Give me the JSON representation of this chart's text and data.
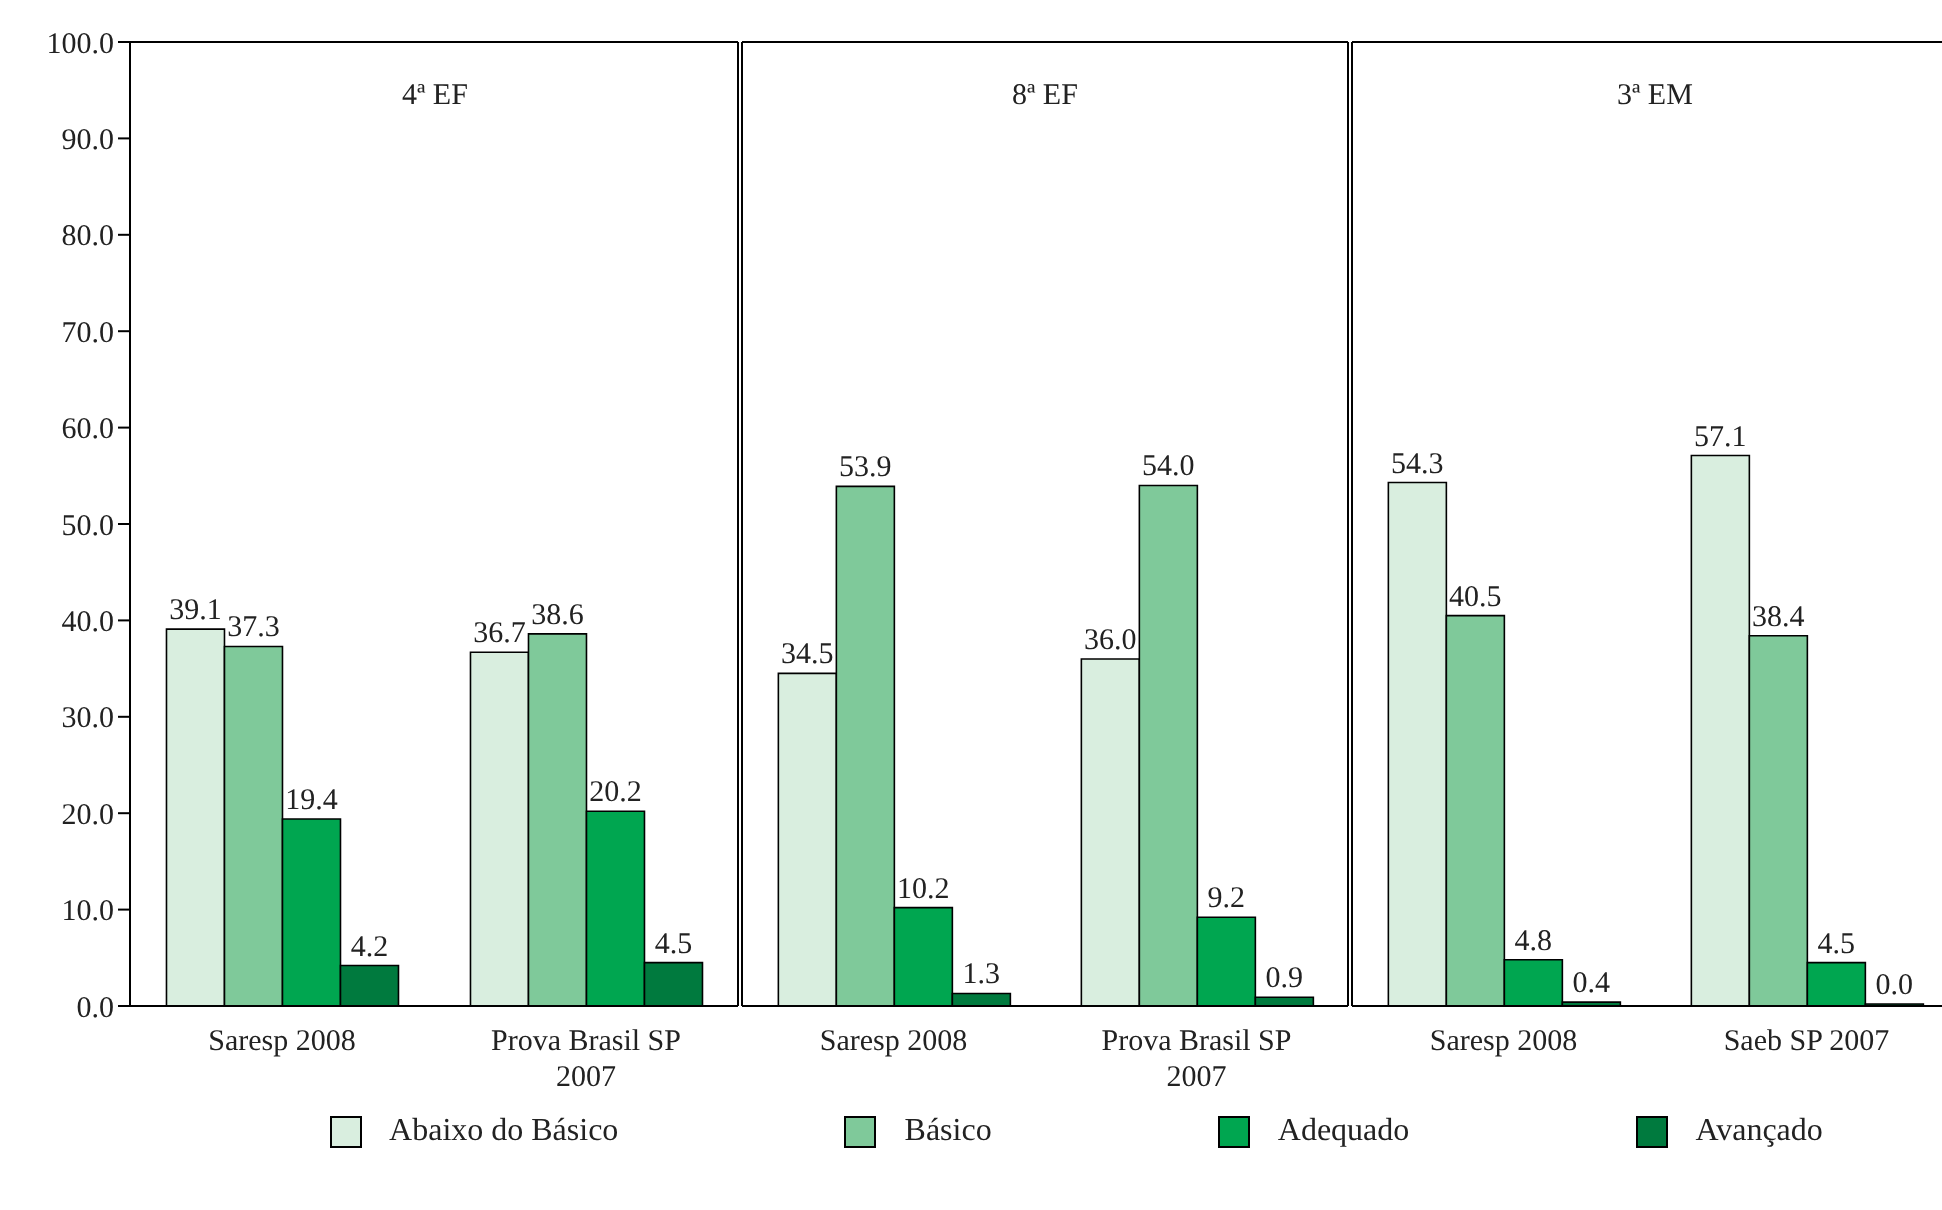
{
  "chart_data": [
    {
      "type": "bar",
      "title": "4ª EF",
      "categories": [
        "Saresp 2008",
        "Prova Brasil SP 2007"
      ],
      "series": [
        {
          "name": "Abaixo do Básico",
          "color": "#d9eedf",
          "values": [
            39.1,
            36.7
          ],
          "value_labels": [
            "39.1",
            "36.7"
          ]
        },
        {
          "name": "Básico",
          "color": "#7fc99a",
          "values": [
            37.3,
            38.6
          ],
          "value_labels": [
            "37.3",
            "38.6"
          ]
        },
        {
          "name": "Adequado",
          "color": "#00a650",
          "values": [
            19.4,
            20.2
          ],
          "value_labels": [
            "19.4",
            "20.2"
          ]
        },
        {
          "name": "Avançado",
          "color": "#007a3e",
          "values": [
            4.2,
            4.5
          ],
          "value_labels": [
            "4.2",
            "4.5"
          ]
        }
      ],
      "ylim": [
        0,
        100
      ],
      "yticks": [
        {
          "value": 0,
          "label": "0.0"
        },
        {
          "value": 10,
          "label": "10.0"
        },
        {
          "value": 20,
          "label": "20.0"
        },
        {
          "value": 30,
          "label": "30.0"
        },
        {
          "value": 40,
          "label": "40.0"
        },
        {
          "value": 50,
          "label": "50.0"
        },
        {
          "value": 60,
          "label": "60.0"
        },
        {
          "value": 70,
          "label": "70.0"
        },
        {
          "value": 80,
          "label": "80.0"
        },
        {
          "value": 90,
          "label": "90.0"
        },
        {
          "value": 100,
          "label": "100.0"
        }
      ],
      "legend": "bottom"
    },
    {
      "type": "bar",
      "title": "8ª EF",
      "categories": [
        "Saresp 2008",
        "Prova Brasil SP 2007"
      ],
      "series": [
        {
          "color": "#d9eedf",
          "values": [
            34.5,
            36.0
          ],
          "value_labels": [
            "34.5",
            "36.0"
          ]
        },
        {
          "color": "#7fc99a",
          "values": [
            53.9,
            54.0
          ],
          "value_labels": [
            "53.9",
            "54.0"
          ]
        },
        {
          "color": "#00a650",
          "values": [
            10.2,
            9.2
          ],
          "value_labels": [
            "10.2",
            "9.2"
          ]
        },
        {
          "color": "#007a3e",
          "values": [
            1.3,
            0.9
          ],
          "value_labels": [
            "1.3",
            "0.9"
          ]
        }
      ],
      "ylim": [
        0,
        100
      ],
      "tick_labels": "x"
    },
    {
      "type": "bar",
      "title": "3ª EM",
      "categories": [
        "Saresp 2008",
        "Saeb SP 2007"
      ],
      "series": [
        {
          "color": "#d9eedf",
          "values": [
            54.3,
            57.1
          ],
          "value_labels": [
            "54.3",
            "57.1"
          ]
        },
        {
          "color": "#7fc99a",
          "values": [
            40.5,
            38.4
          ],
          "value_labels": [
            "40.5",
            "38.4"
          ]
        },
        {
          "color": "#00a650",
          "values": [
            4.8,
            4.5
          ],
          "value_labels": [
            "4.8",
            "4.5"
          ]
        },
        {
          "color": "#007a3e",
          "values": [
            0.4,
            0.0
          ],
          "value_labels": [
            "0.4",
            "0.0"
          ]
        }
      ],
      "ylim": [
        0,
        100
      ],
      "tick_labels": "x"
    }
  ]
}
